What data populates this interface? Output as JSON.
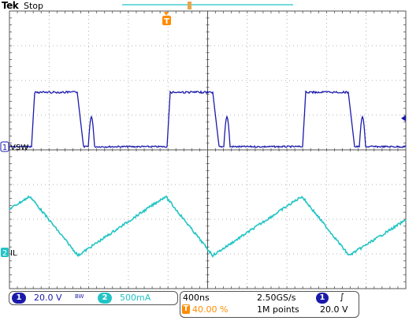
{
  "header": {
    "brand": "Tek",
    "run_state": "Stop"
  },
  "trigger_marker_label": "T",
  "channels": [
    {
      "number": "1",
      "label": "VSW",
      "scale": "20.0 V",
      "color": "#1a1aaa"
    },
    {
      "number": "2",
      "label": "IL",
      "scale": "500mA",
      "color": "#22c4c4"
    }
  ],
  "bandwidth_limit_symbol": "BW",
  "timebase": {
    "scale": "400ns",
    "sample_rate": "2.50GS/s",
    "record_length": "1M points",
    "trigger_position": "40.00 %"
  },
  "trigger": {
    "source": "1",
    "slope_symbol": "∫",
    "level": "20.0 V"
  },
  "colors": {
    "ch1": "#1a1aaa",
    "ch2": "#22c4c4",
    "grid": "#9a9a9a",
    "trigger": "#ff8c00",
    "footer_bg": "#ffffff"
  }
}
